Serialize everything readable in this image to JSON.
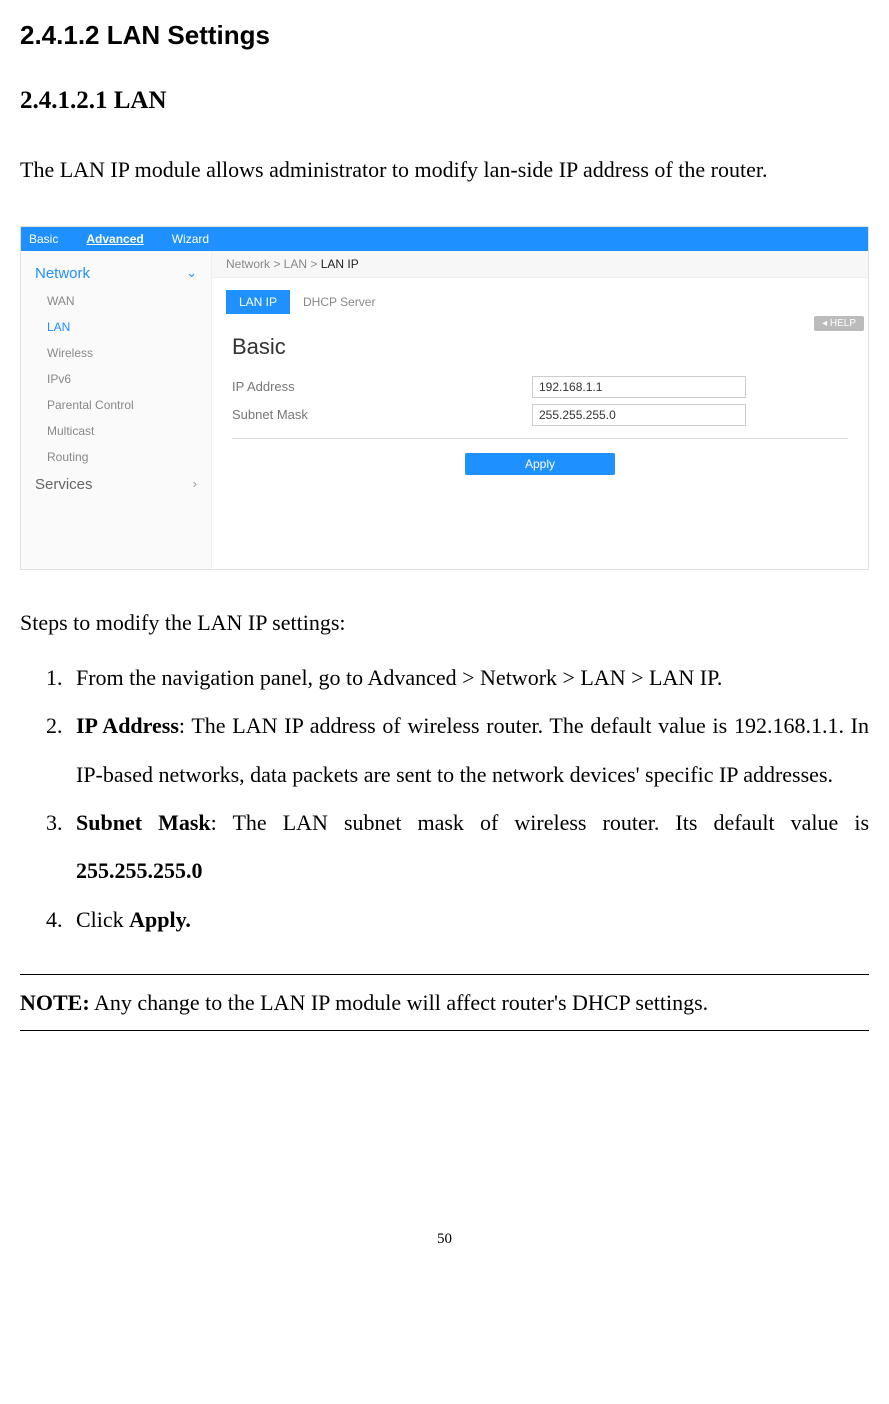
{
  "headings": {
    "h1": "2.4.1.2 LAN Settings",
    "h2": "2.4.1.2.1 LAN"
  },
  "intro": "The LAN IP module allows administrator to modify lan-side IP address of the router.",
  "screenshot": {
    "topnav": {
      "basic": "Basic",
      "advanced": "Advanced",
      "wizard": "Wizard"
    },
    "sidebar": {
      "network": "Network",
      "items": [
        "WAN",
        "LAN",
        "Wireless",
        "IPv6",
        "Parental Control",
        "Multicast",
        "Routing"
      ],
      "services": "Services"
    },
    "breadcrumb": {
      "parts": "Network > LAN > ",
      "current": "LAN IP"
    },
    "tabs": {
      "lanip": "LAN IP",
      "dhcp": "DHCP Server"
    },
    "help": "HELP",
    "form": {
      "section": "Basic",
      "ip_label": "IP Address",
      "ip_value": "192.168.1.1",
      "mask_label": "Subnet Mask",
      "mask_value": "255.255.255.0",
      "apply": "Apply"
    }
  },
  "steps_intro": "Steps to modify the LAN IP settings:",
  "steps": {
    "s1": "From the navigation panel, go to Advanced > Network > LAN > LAN IP.",
    "s2_bold": "IP Address",
    "s2_rest": ": The LAN IP address of wireless router. The default value is 192.168.1.1. In IP-based networks, data packets are sent to the network devices' specific IP addresses.",
    "s3_bold": "Subnet Mask",
    "s3_rest1": ": The LAN subnet mask of wireless router. Its default value is ",
    "s3_rest2": "255.255.255.0",
    "s4_pre": "Click ",
    "s4_bold": "Apply."
  },
  "note": {
    "label": "NOTE:",
    "text": " Any change to the LAN IP module will affect router's DHCP settings."
  },
  "page_number": "50"
}
